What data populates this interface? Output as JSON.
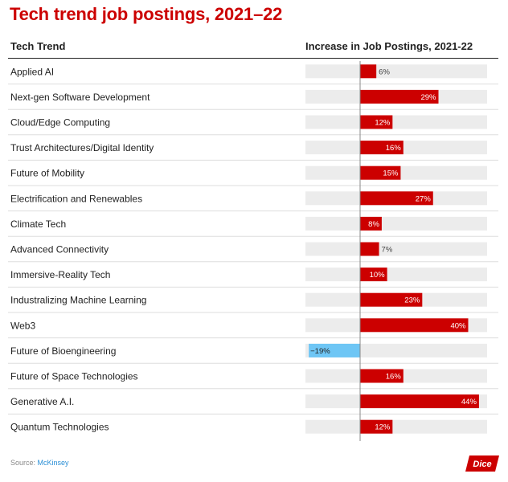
{
  "title": "Tech trend job postings, 2021–22",
  "header": {
    "left": "Tech Trend",
    "right": "Increase in Job Postings, 2021-22"
  },
  "chart_data": {
    "type": "bar",
    "orientation": "horizontal",
    "title": "Tech trend job postings, 2021–22",
    "xlabel": "Increase in Job Postings, 2021-22",
    "ylabel": "Tech Trend",
    "unit": "%",
    "xlim": [
      -20,
      47
    ],
    "categories": [
      "Applied AI",
      "Next-gen Software Development",
      "Cloud/Edge Computing",
      "Trust Architectures/Digital Identity",
      "Future of Mobility",
      "Electrification and Renewables",
      "Climate Tech",
      "Advanced Connectivity",
      "Immersive-Reality Tech",
      "Industralizing Machine Learning",
      "Web3",
      "Future of Bioengineering",
      "Future of Space Technologies",
      "Generative A.I.",
      "Quantum Technologies"
    ],
    "values": [
      6,
      29,
      12,
      16,
      15,
      27,
      8,
      7,
      10,
      23,
      40,
      -19,
      16,
      44,
      12
    ],
    "labels": [
      "6%",
      "29%",
      "12%",
      "16%",
      "15%",
      "27%",
      "8%",
      "7%",
      "10%",
      "23%",
      "40%",
      "−19%",
      "16%",
      "44%",
      "12%"
    ],
    "colors": {
      "positive": "#cc0000",
      "negative": "#6ec6f5",
      "track": "#ececec",
      "separator": "#dddddd",
      "axis": "#888888"
    }
  },
  "footer": {
    "source_prefix": "Source: ",
    "source_name": "McKinsey",
    "logo_text": "Dice"
  }
}
